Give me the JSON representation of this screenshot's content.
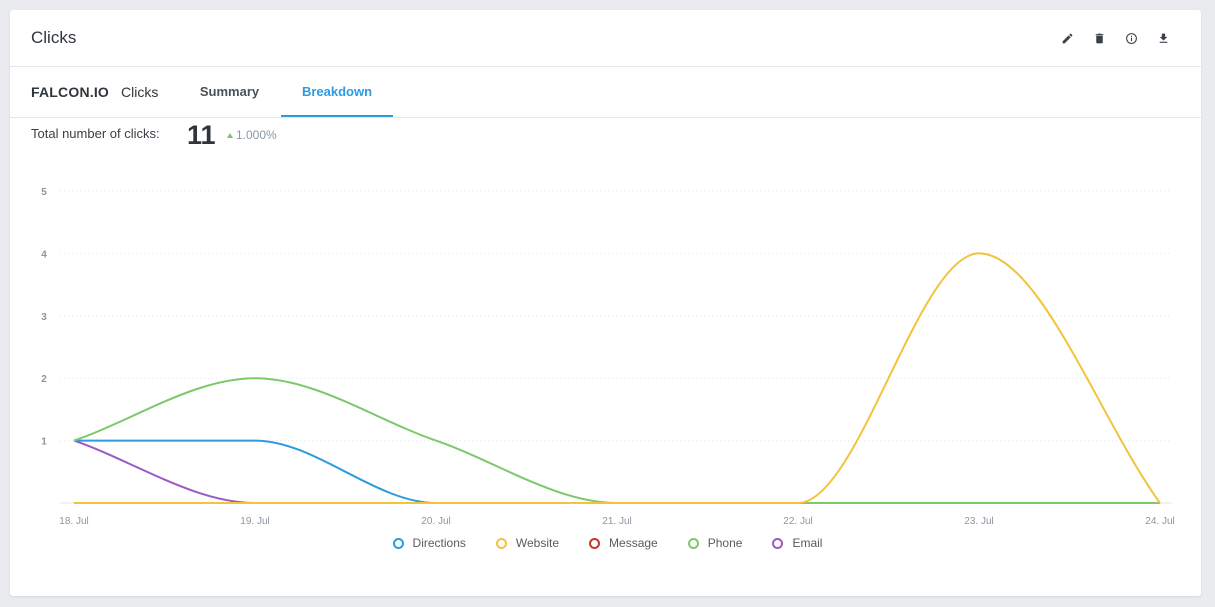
{
  "widget": {
    "title": "Clicks",
    "actions": [
      {
        "name": "edit",
        "icon": "pencil-icon"
      },
      {
        "name": "delete",
        "icon": "trash-icon"
      },
      {
        "name": "info",
        "icon": "info-icon"
      },
      {
        "name": "download",
        "icon": "download-icon"
      }
    ]
  },
  "tabs_bar": {
    "profile": "FALCON.IO",
    "metric": "Clicks",
    "tabs": [
      {
        "label": "Summary",
        "active": false
      },
      {
        "label": "Breakdown",
        "active": true
      }
    ]
  },
  "total": {
    "label": "Total number of clicks:",
    "value": "11",
    "delta": "1.000%",
    "delta_color": "#7cc36d"
  },
  "chart_data": {
    "type": "line",
    "categories": [
      "18. Jul",
      "19. Jul",
      "20. Jul",
      "21. Jul",
      "22. Jul",
      "23. Jul",
      "24. Jul"
    ],
    "yticks": [
      1,
      2,
      3,
      4,
      5
    ],
    "ylim": [
      0,
      5
    ],
    "grid": true,
    "legend_position": "bottom",
    "series": [
      {
        "name": "Directions",
        "color": "#2d9be0",
        "values": [
          1,
          1,
          0,
          0,
          0,
          0,
          0
        ]
      },
      {
        "name": "Website",
        "color": "#f3c33c",
        "values": [
          0,
          0,
          0,
          0,
          0,
          4,
          0
        ]
      },
      {
        "name": "Message",
        "color": "#c0392b",
        "values": [
          0,
          0,
          0,
          0,
          0,
          0,
          0
        ]
      },
      {
        "name": "Phone",
        "color": "#7cc96a",
        "values": [
          1,
          2,
          1,
          0,
          0,
          0,
          0
        ]
      },
      {
        "name": "Email",
        "color": "#9b59c6",
        "values": [
          1,
          0,
          0,
          0,
          0,
          0,
          0
        ]
      }
    ]
  }
}
